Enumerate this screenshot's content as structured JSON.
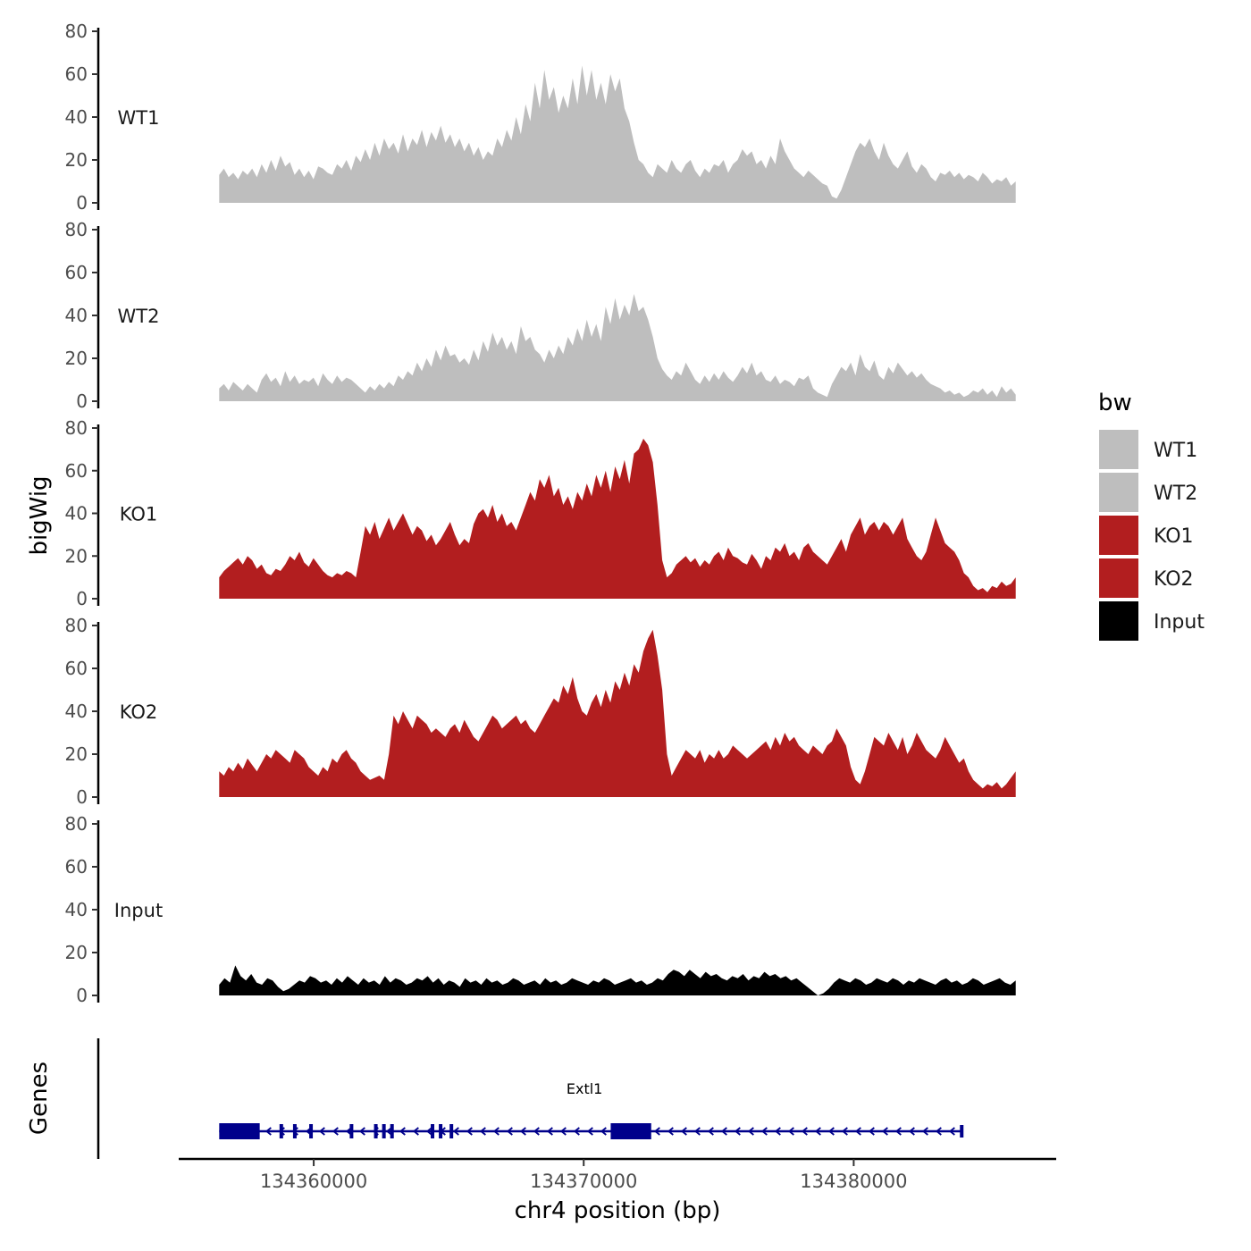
{
  "chart_data": {
    "type": "area",
    "title": "",
    "xlabel": "chr4 position (bp)",
    "ylabel": "bigWig",
    "genes_label": "Genes",
    "xlim": [
      134355000,
      134387500
    ],
    "xticks": [
      134360000,
      134370000,
      134380000
    ],
    "xtick_labels": [
      "134360000",
      "134370000",
      "134380000"
    ],
    "ylim": [
      0,
      80
    ],
    "yticks": [
      0,
      20,
      40,
      60,
      80
    ],
    "ytick_labels": [
      "0",
      "20",
      "40",
      "60",
      "80"
    ],
    "data_range": [
      134356500,
      134386000
    ],
    "legend": {
      "title": "bw",
      "position": "right",
      "entries": [
        {
          "label": "WT1",
          "color": "#bebebe"
        },
        {
          "label": "WT2",
          "color": "#bebebe"
        },
        {
          "label": "KO1",
          "color": "#b21e1f"
        },
        {
          "label": "KO2",
          "color": "#b21e1f"
        },
        {
          "label": "Input",
          "color": "#000000"
        }
      ]
    },
    "series": [
      {
        "name": "WT1",
        "color": "#bebebe",
        "values": [
          13,
          16,
          12,
          14,
          11,
          15,
          13,
          16,
          12,
          18,
          14,
          20,
          15,
          22,
          17,
          19,
          13,
          16,
          12,
          15,
          11,
          17,
          16,
          14,
          13,
          18,
          16,
          20,
          15,
          22,
          19,
          25,
          20,
          28,
          22,
          30,
          25,
          28,
          23,
          32,
          24,
          30,
          27,
          34,
          26,
          33,
          29,
          36,
          28,
          32,
          26,
          30,
          24,
          28,
          22,
          26,
          20,
          24,
          22,
          30,
          26,
          34,
          29,
          40,
          32,
          46,
          38,
          56,
          44,
          62,
          48,
          54,
          42,
          50,
          44,
          58,
          46,
          64,
          50,
          62,
          48,
          56,
          46,
          60,
          52,
          58,
          44,
          38,
          28,
          20,
          18,
          14,
          12,
          18,
          16,
          14,
          20,
          16,
          14,
          18,
          20,
          15,
          12,
          16,
          14,
          18,
          17,
          20,
          14,
          18,
          20,
          25,
          22,
          24,
          18,
          20,
          16,
          22,
          18,
          30,
          24,
          20,
          16,
          14,
          12,
          15,
          13,
          11,
          9,
          8,
          3,
          2,
          6,
          12,
          18,
          24,
          28,
          26,
          30,
          24,
          20,
          28,
          22,
          18,
          16,
          20,
          24,
          17,
          14,
          18,
          16,
          12,
          10,
          14,
          13,
          15,
          12,
          14,
          11,
          13,
          12,
          10,
          14,
          12,
          9,
          11,
          10,
          12,
          8,
          10
        ]
      },
      {
        "name": "WT2",
        "color": "#bebebe",
        "values": [
          6,
          8,
          5,
          9,
          7,
          5,
          8,
          6,
          4,
          10,
          13,
          9,
          11,
          7,
          14,
          9,
          12,
          8,
          10,
          9,
          11,
          7,
          13,
          10,
          8,
          12,
          9,
          11,
          10,
          8,
          6,
          4,
          7,
          5,
          8,
          6,
          9,
          7,
          12,
          10,
          14,
          12,
          18,
          14,
          20,
          16,
          24,
          19,
          26,
          21,
          22,
          18,
          20,
          17,
          24,
          19,
          28,
          23,
          32,
          26,
          30,
          24,
          28,
          22,
          35,
          28,
          30,
          24,
          22,
          18,
          24,
          20,
          26,
          22,
          30,
          26,
          34,
          28,
          38,
          30,
          36,
          28,
          44,
          36,
          48,
          38,
          45,
          40,
          50,
          42,
          44,
          38,
          30,
          20,
          15,
          12,
          10,
          14,
          12,
          18,
          14,
          10,
          8,
          12,
          9,
          13,
          10,
          14,
          11,
          9,
          12,
          16,
          13,
          18,
          12,
          14,
          10,
          9,
          12,
          8,
          10,
          9,
          7,
          11,
          10,
          12,
          6,
          4,
          3,
          2,
          8,
          12,
          16,
          14,
          18,
          12,
          22,
          16,
          14,
          19,
          12,
          10,
          16,
          13,
          18,
          15,
          12,
          14,
          11,
          13,
          10,
          8,
          7,
          6,
          4,
          5,
          3,
          4,
          2,
          3,
          5,
          4,
          6,
          3,
          5,
          2,
          7,
          4,
          6,
          3
        ]
      },
      {
        "name": "KO1",
        "color": "#b21e1f",
        "values": [
          10,
          13,
          15,
          17,
          19,
          16,
          20,
          18,
          14,
          16,
          12,
          11,
          14,
          13,
          16,
          20,
          18,
          22,
          17,
          15,
          19,
          16,
          13,
          11,
          10,
          12,
          11,
          13,
          12,
          10,
          22,
          34,
          30,
          36,
          28,
          33,
          38,
          32,
          36,
          40,
          35,
          30,
          34,
          32,
          27,
          30,
          25,
          28,
          32,
          36,
          30,
          25,
          28,
          26,
          35,
          40,
          42,
          38,
          44,
          36,
          40,
          34,
          36,
          32,
          38,
          44,
          50,
          46,
          56,
          52,
          58,
          48,
          52,
          44,
          48,
          42,
          50,
          46,
          54,
          48,
          58,
          52,
          60,
          50,
          62,
          56,
          65,
          54,
          68,
          70,
          75,
          72,
          64,
          44,
          18,
          10,
          12,
          16,
          18,
          20,
          17,
          19,
          15,
          18,
          16,
          20,
          22,
          18,
          24,
          20,
          19,
          17,
          16,
          21,
          18,
          14,
          20,
          18,
          24,
          22,
          26,
          20,
          22,
          18,
          24,
          26,
          22,
          20,
          18,
          16,
          20,
          24,
          28,
          22,
          30,
          34,
          38,
          30,
          34,
          36,
          32,
          36,
          34,
          30,
          34,
          38,
          28,
          24,
          20,
          18,
          22,
          30,
          38,
          32,
          26,
          24,
          22,
          18,
          12,
          10,
          6,
          4,
          5,
          3,
          6,
          5,
          8,
          6,
          7,
          10
        ]
      },
      {
        "name": "KO2",
        "color": "#b21e1f",
        "values": [
          12,
          10,
          14,
          12,
          16,
          13,
          18,
          15,
          12,
          16,
          20,
          18,
          22,
          20,
          18,
          16,
          22,
          20,
          18,
          14,
          12,
          10,
          14,
          12,
          18,
          16,
          20,
          22,
          18,
          16,
          12,
          10,
          8,
          9,
          10,
          8,
          20,
          38,
          34,
          40,
          36,
          32,
          38,
          36,
          34,
          30,
          32,
          30,
          28,
          32,
          34,
          30,
          36,
          32,
          28,
          26,
          30,
          34,
          38,
          36,
          32,
          34,
          36,
          38,
          34,
          36,
          32,
          30,
          34,
          38,
          42,
          46,
          44,
          52,
          48,
          56,
          46,
          40,
          38,
          44,
          48,
          42,
          50,
          44,
          54,
          50,
          58,
          52,
          62,
          58,
          68,
          74,
          78,
          66,
          50,
          20,
          10,
          14,
          18,
          22,
          20,
          18,
          22,
          16,
          20,
          18,
          22,
          18,
          20,
          24,
          22,
          20,
          18,
          20,
          22,
          24,
          26,
          22,
          28,
          24,
          30,
          26,
          28,
          24,
          22,
          20,
          24,
          22,
          20,
          24,
          26,
          32,
          28,
          24,
          14,
          8,
          6,
          12,
          20,
          28,
          26,
          24,
          30,
          26,
          22,
          28,
          20,
          24,
          30,
          26,
          22,
          20,
          18,
          22,
          28,
          24,
          20,
          16,
          18,
          12,
          8,
          6,
          4,
          6,
          5,
          7,
          4,
          6,
          9,
          12
        ]
      },
      {
        "name": "Input",
        "color": "#000000",
        "values": [
          5,
          8,
          6,
          14,
          9,
          7,
          10,
          6,
          5,
          8,
          7,
          4,
          2,
          3,
          5,
          7,
          6,
          9,
          8,
          6,
          7,
          5,
          8,
          6,
          9,
          7,
          5,
          8,
          6,
          7,
          5,
          9,
          6,
          8,
          7,
          5,
          6,
          8,
          7,
          9,
          6,
          8,
          5,
          7,
          6,
          4,
          8,
          6,
          7,
          5,
          8,
          6,
          7,
          5,
          6,
          8,
          7,
          5,
          6,
          7,
          5,
          8,
          6,
          7,
          5,
          6,
          8,
          7,
          6,
          5,
          7,
          6,
          8,
          7,
          5,
          6,
          7,
          8,
          6,
          7,
          5,
          6,
          8,
          7,
          10,
          12,
          11,
          9,
          12,
          10,
          8,
          11,
          9,
          10,
          8,
          7,
          9,
          8,
          10,
          7,
          9,
          8,
          11,
          9,
          10,
          8,
          9,
          7,
          8,
          6,
          4,
          2,
          0,
          1,
          3,
          6,
          8,
          7,
          6,
          8,
          7,
          5,
          6,
          8,
          7,
          6,
          8,
          7,
          5,
          7,
          6,
          8,
          7,
          6,
          5,
          7,
          8,
          6,
          7,
          5,
          6,
          8,
          7,
          5,
          6,
          7,
          8,
          6,
          5,
          7
        ]
      }
    ],
    "gene": {
      "name": "Extl1",
      "start": 134356500,
      "end": 134384000,
      "strand": "-",
      "color": "#00008b",
      "exons": [
        [
          134356500,
          134358000
        ],
        [
          134371000,
          134372500
        ]
      ],
      "small_exons": [
        134358800,
        134359300,
        134359900,
        134361400,
        134362300,
        134362600,
        134362900,
        134364400,
        134364700,
        134365100
      ]
    }
  }
}
